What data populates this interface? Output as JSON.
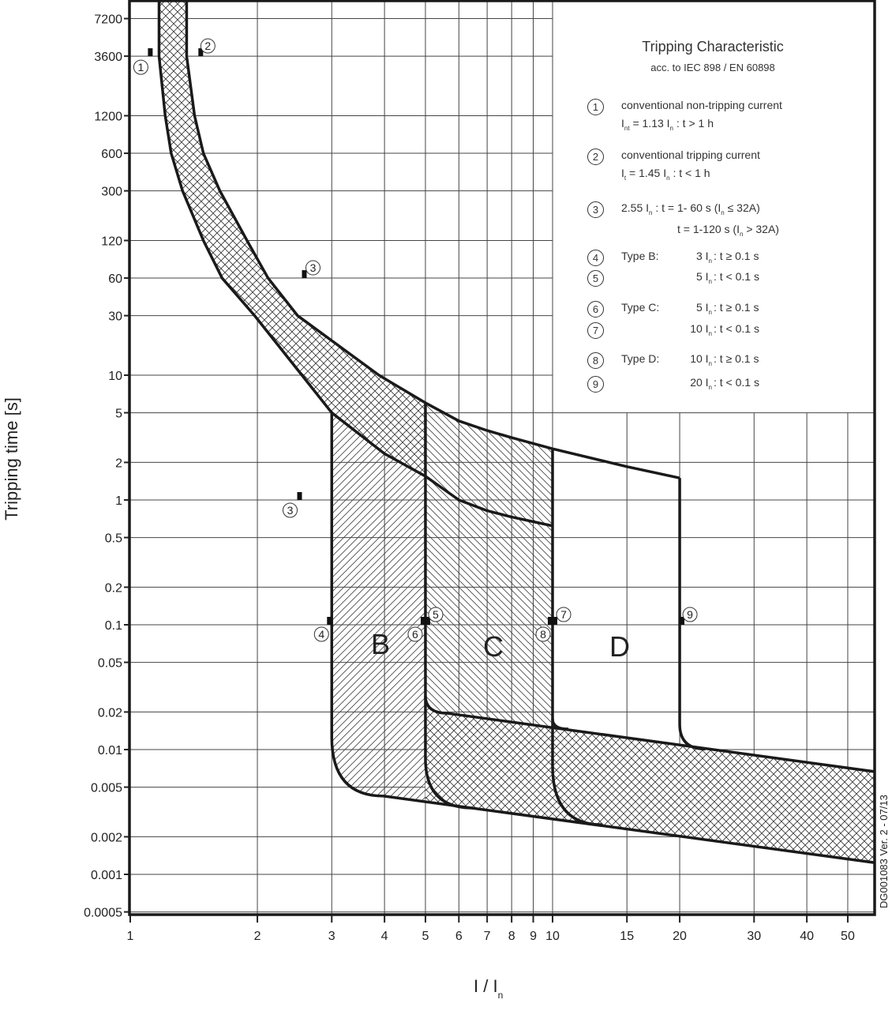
{
  "chart_data": {
    "type": "line",
    "title": "Tripping Characteristic",
    "subtitle": "acc. to IEC 898 / EN 60898",
    "xlabel": "I / I",
    "xlabel_sub": "n",
    "ylabel": "Tripping time [s]",
    "x_scale": "log",
    "y_scale": "log",
    "xlim": [
      1,
      58
    ],
    "ylim": [
      0.0005,
      10000
    ],
    "grid": true,
    "x_ticks": [
      1,
      2,
      3,
      4,
      5,
      6,
      7,
      8,
      9,
      10,
      15,
      20,
      30,
      40,
      50
    ],
    "x_tick_labels": [
      "1",
      "2",
      "3",
      "4",
      "5",
      "6",
      "7",
      "8",
      "9",
      "10",
      "15",
      "20",
      "30",
      "40",
      "50"
    ],
    "y_ticks": [
      7200,
      3600,
      1200,
      600,
      300,
      120,
      60,
      30,
      10,
      5,
      2,
      1,
      0.5,
      0.2,
      0.1,
      0.05,
      0.02,
      0.01,
      0.005,
      0.002,
      0.001,
      0.0005
    ],
    "y_tick_labels": [
      "7200",
      "3600",
      "1200",
      "600",
      "300",
      "120",
      "60",
      "30",
      "10",
      "5",
      "2",
      "1",
      "0.5",
      "0.2",
      "0.1",
      "0.05",
      "0.02",
      "0.01",
      "0.005",
      "0.002",
      "0.001",
      "0.0005"
    ],
    "curves": {
      "thermal_lower": [
        [
          1.17,
          12000
        ],
        [
          1.17,
          3600
        ],
        [
          1.21,
          1200
        ],
        [
          1.25,
          600
        ],
        [
          1.33,
          300
        ],
        [
          1.49,
          120
        ],
        [
          1.65,
          60
        ],
        [
          1.97,
          30
        ],
        [
          2.55,
          10
        ],
        [
          3,
          5
        ],
        [
          4,
          2.35
        ],
        [
          5,
          1.55
        ],
        [
          6,
          1.0
        ],
        [
          7,
          0.82
        ],
        [
          8,
          0.73
        ],
        [
          9,
          0.67
        ],
        [
          10,
          0.62
        ]
      ],
      "thermal_upper": [
        [
          1.36,
          12000
        ],
        [
          1.36,
          3600
        ],
        [
          1.42,
          1200
        ],
        [
          1.49,
          600
        ],
        [
          1.63,
          300
        ],
        [
          1.89,
          120
        ],
        [
          2.12,
          60
        ],
        [
          2.49,
          30
        ],
        [
          3.88,
          10
        ],
        [
          5,
          6
        ],
        [
          6,
          4.3
        ],
        [
          7,
          3.6
        ],
        [
          8,
          3.16
        ],
        [
          10,
          2.57
        ],
        [
          15,
          1.85
        ],
        [
          20,
          1.5
        ]
      ],
      "magnetic_B": [
        [
          3,
          5
        ],
        [
          3,
          0.0126
        ],
        {
          "q": [
            3.98,
            0.00424
          ]
        },
        [
          58,
          0.00124
        ]
      ],
      "magnetic_C_lower": [
        [
          5,
          6
        ],
        [
          5,
          0.0085
        ],
        {
          "q": [
            6.47,
            0.0034
          ]
        }
      ],
      "magnetic_C_upper": [
        [
          5,
          0.027
        ],
        {
          "q": [
            5.66,
            0.0195
          ]
        },
        [
          58,
          0.00665
        ]
      ],
      "magnetic_D_lower": [
        [
          10,
          2.57
        ],
        [
          10,
          0.0074
        ],
        {
          "q": [
            13.1,
            0.0025
          ]
        }
      ],
      "magnetic_D_upper": [
        [
          10,
          0.0176
        ],
        {
          "q": [
            10.9,
            0.0146
          ]
        }
      ],
      "magnetic_20": [
        [
          20,
          1.5
        ],
        [
          20,
          0.016
        ],
        {
          "q": [
            23,
            0.0101
          ]
        }
      ]
    },
    "regions": [
      {
        "label": "B",
        "hatch": "forward",
        "outline": [
          [
            3,
            5
          ],
          [
            3,
            0.0126
          ],
          {
            "q": [
              3.98,
              0.00424
            ]
          },
          [
            5,
            0.00382
          ],
          [
            5,
            1.55
          ],
          [
            4,
            2.35
          ],
          [
            3,
            5
          ]
        ]
      },
      {
        "label": "C",
        "hatch": "backward",
        "outline": [
          [
            5,
            6
          ],
          [
            6,
            4.3
          ],
          [
            7,
            3.6
          ],
          [
            8,
            3.16
          ],
          [
            10,
            2.57
          ],
          [
            10,
            0.015
          ],
          [
            5.66,
            0.0195
          ],
          {
            "qh": [
              5,
              0.027
            ]
          },
          [
            5,
            6
          ]
        ]
      },
      {
        "label": "D",
        "hatch": "none",
        "outline": []
      }
    ],
    "bands": [
      {
        "hatch": "cross",
        "outline": [
          [
            1.36,
            12000
          ],
          [
            1.36,
            3600
          ],
          [
            1.42,
            1200
          ],
          [
            1.49,
            600
          ],
          [
            1.63,
            300
          ],
          [
            1.89,
            120
          ],
          [
            2.12,
            60
          ],
          [
            2.49,
            30
          ],
          [
            3.88,
            10
          ],
          [
            5,
            6
          ],
          [
            5,
            1.55
          ],
          [
            4,
            2.35
          ],
          [
            3,
            5
          ],
          [
            2.55,
            10
          ],
          [
            1.97,
            30
          ],
          [
            1.65,
            60
          ],
          [
            1.49,
            120
          ],
          [
            1.33,
            300
          ],
          [
            1.25,
            600
          ],
          [
            1.21,
            1200
          ],
          [
            1.17,
            3600
          ],
          [
            1.17,
            12000
          ]
        ]
      },
      {
        "hatch": "cross",
        "outline": [
          [
            5,
            0.027
          ],
          {
            "q": [
              5.66,
              0.0195
            ]
          },
          [
            58,
            0.00665
          ],
          [
            58,
            0.00124
          ],
          [
            5,
            0.00382
          ],
          [
            5,
            0.027
          ]
        ]
      }
    ],
    "annotations": [
      {
        "label": "1",
        "I": 1.13,
        "t": 3600
      },
      {
        "label": "2",
        "I": 1.45,
        "t": 3600
      },
      {
        "label": "3",
        "I": 2.55,
        "t": 60
      },
      {
        "label": "3",
        "I": 2.55,
        "t": 1
      },
      {
        "label": "4",
        "I": 3,
        "t": 0.1
      },
      {
        "label": "5",
        "I": 5,
        "t": 0.1
      },
      {
        "label": "6",
        "I": 5,
        "t": 0.1
      },
      {
        "label": "7",
        "I": 10,
        "t": 0.1
      },
      {
        "label": "8",
        "I": 10,
        "t": 0.1
      },
      {
        "label": "9",
        "I": 20,
        "t": 0.1
      }
    ],
    "legend": [
      {
        "num": "1",
        "lines": [
          [
            {
              "t": "conventional non-tripping current"
            }
          ],
          [
            {
              "t": "I"
            },
            {
              "sub": "nt"
            },
            {
              "t": "  = 1.13 I"
            },
            {
              "sub": "n"
            },
            {
              "t": " :  t > 1 h"
            }
          ]
        ]
      },
      {
        "num": "2",
        "lines": [
          [
            {
              "t": "conventional tripping current"
            }
          ],
          [
            {
              "t": "I"
            },
            {
              "sub": "t"
            },
            {
              "t": "  = 1.45 I"
            },
            {
              "sub": "n"
            },
            {
              "t": " :  t < 1 h"
            }
          ]
        ]
      },
      {
        "num": "3",
        "lines": [
          [
            {
              "t": "2.55 I"
            },
            {
              "sub": "n"
            },
            {
              "t": " :   t = 1- 60 s     (I"
            },
            {
              "sub": "n"
            },
            {
              "t": " ≤ 32A)"
            }
          ],
          [
            {
              "t": "t = 1-120 s   (I"
            },
            {
              "sub": "n"
            },
            {
              "t": " > 32A)"
            }
          ]
        ]
      },
      {
        "num": "4",
        "type": "Type B:",
        "value": "3 I",
        "cond": " : t ≥ 0.1 s"
      },
      {
        "num": "5",
        "type": "",
        "value": "5 I",
        "cond": " : t < 0.1 s"
      },
      {
        "num": "6",
        "type": "Type C:",
        "value": "5 I",
        "cond": " : t ≥ 0.1 s"
      },
      {
        "num": "7",
        "type": "",
        "value": "10 I",
        "cond": " : t < 0.1 s"
      },
      {
        "num": "8",
        "type": "Type D:",
        "value": "10 I",
        "cond": " : t ≥ 0.1 s"
      },
      {
        "num": "9",
        "type": "",
        "value": "20 I",
        "cond": " : t < 0.1 s"
      }
    ],
    "value_sub": "n"
  },
  "footer": "DG001083 Ver. 2 - 07/13"
}
